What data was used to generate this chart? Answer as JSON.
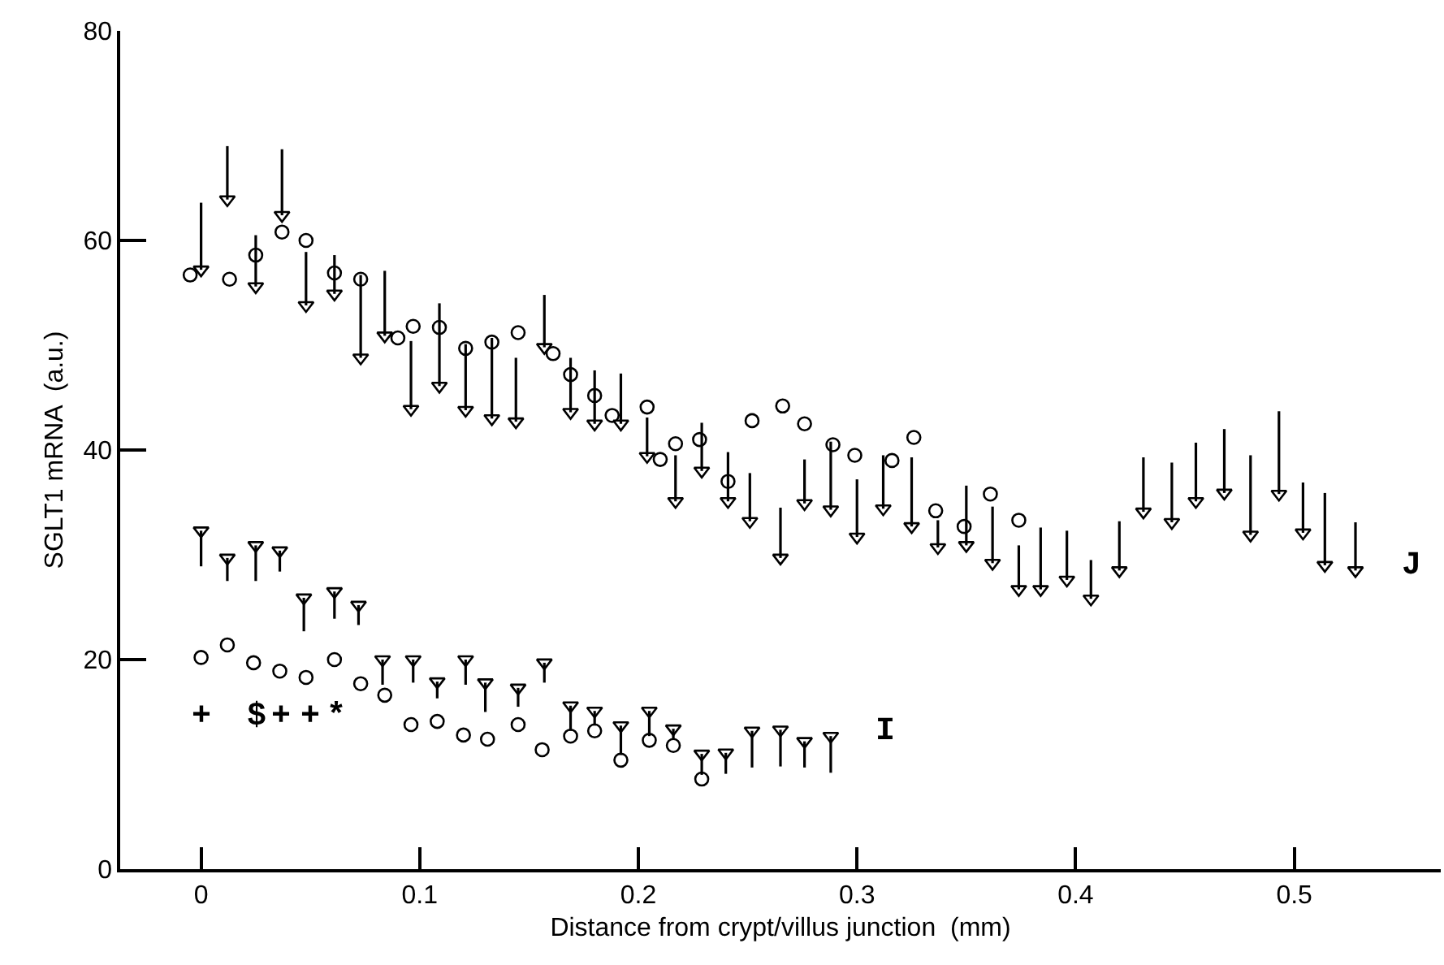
{
  "chart_data": {
    "type": "scatter",
    "xlabel": "Distance from crypt/villus junction  (mm)",
    "ylabel": "SGLT1 mRNA  (a.u.)",
    "xlim": [
      -0.037,
      0.567
    ],
    "ylim": [
      0,
      80
    ],
    "xticks": [
      0,
      0.1,
      0.2,
      0.3,
      0.4,
      0.5
    ],
    "yticks": [
      0,
      20,
      40,
      60,
      80
    ],
    "grid": false,
    "legend": "right",
    "series": [
      {
        "color": "#000000",
        "marker": "circle",
        "x": [
          -0.005,
          0.013,
          0.025,
          0.037,
          0.048,
          0.061,
          0.073,
          0.09,
          0.097,
          0.109,
          0.121,
          0.133,
          0.145,
          0.161,
          0.169,
          0.18,
          0.188,
          0.204,
          0.21,
          0.217,
          0.228,
          0.241,
          0.252,
          0.266,
          0.276,
          0.289,
          0.299,
          0.316,
          0.326,
          0.336,
          0.349,
          0.361,
          0.374
        ],
        "values": [
          56.7,
          56.3,
          58.6,
          60.8,
          60.0,
          56.9,
          56.3,
          50.7,
          51.8,
          51.7,
          49.7,
          50.3,
          51.2,
          49.2,
          47.2,
          45.2,
          43.3,
          44.1,
          39.1,
          40.6,
          41.0,
          37.0,
          42.8,
          44.2,
          42.5,
          40.5,
          39.5,
          39.0,
          41.2,
          34.2,
          32.7,
          35.8,
          33.3
        ]
      },
      {
        "name": "J",
        "color": "#000000",
        "marker": "triangle",
        "x": [
          0.0,
          0.012,
          0.025,
          0.037,
          0.048,
          0.061,
          0.073,
          0.084,
          0.096,
          0.109,
          0.121,
          0.133,
          0.144,
          0.157,
          0.169,
          0.18,
          0.192,
          0.204,
          0.217,
          0.229,
          0.241,
          0.251,
          0.265,
          0.276,
          0.288,
          0.3,
          0.312,
          0.325,
          0.337,
          0.35,
          0.362,
          0.374,
          0.384,
          0.396,
          0.407,
          0.42,
          0.431,
          0.444,
          0.455,
          0.468,
          0.48,
          0.493,
          0.504,
          0.514,
          0.528
        ],
        "values": [
          57.2,
          63.9,
          55.6,
          62.4,
          53.8,
          54.9,
          48.8,
          50.9,
          43.9,
          46.1,
          43.8,
          43.0,
          42.7,
          49.8,
          43.6,
          42.5,
          42.5,
          39.4,
          35.1,
          38.0,
          35.1,
          33.2,
          29.7,
          34.9,
          34.3,
          31.7,
          34.4,
          32.7,
          30.7,
          30.9,
          29.2,
          26.7,
          26.7,
          27.6,
          25.8,
          28.5,
          34.1,
          33.1,
          35.1,
          35.9,
          31.9,
          35.8,
          32.1,
          29.0,
          28.5
        ],
        "errors": [
          [
            57.2,
            63.6
          ],
          [
            63.9,
            69.0
          ],
          [
            55.6,
            60.5
          ],
          [
            62.4,
            68.7
          ],
          [
            53.8,
            58.9
          ],
          [
            54.9,
            58.6
          ],
          [
            48.8,
            56.7
          ],
          [
            50.9,
            57.1
          ],
          [
            43.9,
            50.4
          ],
          [
            46.1,
            54.0
          ],
          [
            43.8,
            50.1
          ],
          [
            43.0,
            50.7
          ],
          [
            42.7,
            48.8
          ],
          [
            49.8,
            54.8
          ],
          [
            43.6,
            48.8
          ],
          [
            42.5,
            47.6
          ],
          [
            42.5,
            47.3
          ],
          [
            39.4,
            43.1
          ],
          [
            35.1,
            39.5
          ],
          [
            38.0,
            42.6
          ],
          [
            35.1,
            39.8
          ],
          [
            33.2,
            37.8
          ],
          [
            29.7,
            34.5
          ],
          [
            34.9,
            39.1
          ],
          [
            34.3,
            40.8
          ],
          [
            31.7,
            37.2
          ],
          [
            34.4,
            39.5
          ],
          [
            32.7,
            39.3
          ],
          [
            30.7,
            33.3
          ],
          [
            30.9,
            36.6
          ],
          [
            29.2,
            34.6
          ],
          [
            26.7,
            30.9
          ],
          [
            26.7,
            32.6
          ],
          [
            27.6,
            32.3
          ],
          [
            25.8,
            29.5
          ],
          [
            28.5,
            33.2
          ],
          [
            34.1,
            39.3
          ],
          [
            33.1,
            38.8
          ],
          [
            35.1,
            40.7
          ],
          [
            35.9,
            42.0
          ],
          [
            31.9,
            39.5
          ],
          [
            35.8,
            43.7
          ],
          [
            32.1,
            36.9
          ],
          [
            29.0,
            35.9
          ],
          [
            28.5,
            33.1
          ]
        ]
      },
      {
        "color": "#000000",
        "marker": "circle",
        "x": [
          0.0,
          0.012,
          0.024,
          0.036,
          0.048,
          0.061,
          0.073,
          0.084,
          0.096,
          0.108,
          0.12,
          0.131,
          0.145,
          0.156,
          0.169,
          0.18,
          0.192,
          0.205,
          0.216,
          0.229
        ],
        "values": [
          20.2,
          21.4,
          19.7,
          18.9,
          18.3,
          20.0,
          17.7,
          16.6,
          13.8,
          14.1,
          12.8,
          12.4,
          13.8,
          11.4,
          12.7,
          13.2,
          10.4,
          12.3,
          11.8,
          8.6
        ]
      },
      {
        "name": "I",
        "color": "#000000",
        "marker": "triangle",
        "x": [
          0.0,
          0.012,
          0.025,
          0.036,
          0.047,
          0.061,
          0.072,
          0.083,
          0.097,
          0.108,
          0.121,
          0.13,
          0.145,
          0.157,
          0.169,
          0.18,
          0.192,
          0.205,
          0.216,
          0.229,
          0.24,
          0.252,
          0.265,
          0.276,
          0.288
        ],
        "values": [
          32.3,
          29.7,
          30.9,
          30.4,
          25.9,
          26.5,
          25.2,
          20.0,
          20.0,
          17.9,
          20.0,
          17.8,
          17.3,
          19.7,
          15.6,
          15.1,
          13.7,
          15.1,
          13.4,
          11.0,
          11.1,
          13.2,
          13.3,
          12.2,
          12.7
        ],
        "errors": [
          [
            28.9,
            32.3
          ],
          [
            27.5,
            29.7
          ],
          [
            27.5,
            30.9
          ],
          [
            28.4,
            30.4
          ],
          [
            22.7,
            25.9
          ],
          [
            23.9,
            26.5
          ],
          [
            23.3,
            25.2
          ],
          [
            17.6,
            20.0
          ],
          [
            17.8,
            20.0
          ],
          [
            16.3,
            17.9
          ],
          [
            17.6,
            20.0
          ],
          [
            15.0,
            17.8
          ],
          [
            15.5,
            17.3
          ],
          [
            17.8,
            19.7
          ],
          [
            13.2,
            15.6
          ],
          [
            13.7,
            15.1
          ],
          [
            10.9,
            13.7
          ],
          [
            12.7,
            15.1
          ],
          [
            12.4,
            13.4
          ],
          [
            9.0,
            11.0
          ],
          [
            9.1,
            11.1
          ],
          [
            9.7,
            13.2
          ],
          [
            9.8,
            13.3
          ],
          [
            9.7,
            12.2
          ],
          [
            9.2,
            12.7
          ]
        ]
      }
    ],
    "annotations": [
      "+",
      "$",
      "+",
      "+",
      "*"
    ]
  }
}
